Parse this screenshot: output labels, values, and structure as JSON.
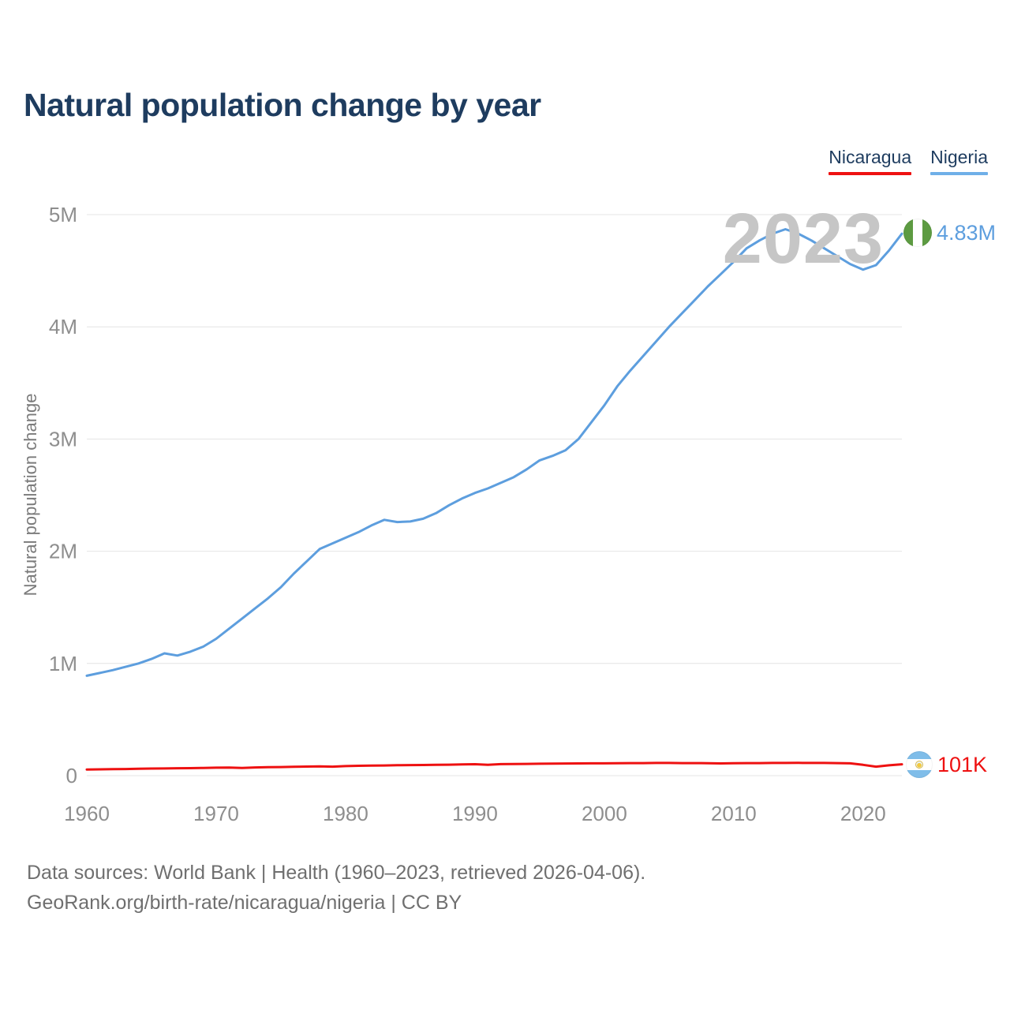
{
  "header": {
    "title": "Natural population change by year"
  },
  "legend": [
    {
      "label": "Nicaragua",
      "color": "#ee1111"
    },
    {
      "label": "Nigeria",
      "color": "#6fafe8"
    }
  ],
  "watermark": "2023",
  "chart_data": {
    "type": "line",
    "title": "Natural population change by year",
    "xlabel": "",
    "ylabel": "Natural population change",
    "xlim": [
      1960,
      2023
    ],
    "ylim": [
      0,
      5000000
    ],
    "grid": "horizontal",
    "legend_position": "top-right",
    "x_ticks": [
      "1960",
      "1970",
      "1980",
      "1990",
      "2000",
      "2010",
      "2020"
    ],
    "y_ticks": [
      "0",
      "1M",
      "2M",
      "3M",
      "4M",
      "5M"
    ],
    "x": [
      1960,
      1961,
      1962,
      1963,
      1964,
      1965,
      1966,
      1967,
      1968,
      1969,
      1970,
      1971,
      1972,
      1973,
      1974,
      1975,
      1976,
      1977,
      1978,
      1979,
      1980,
      1981,
      1982,
      1983,
      1984,
      1985,
      1986,
      1987,
      1988,
      1989,
      1990,
      1991,
      1992,
      1993,
      1994,
      1995,
      1996,
      1997,
      1998,
      1999,
      2000,
      2001,
      2002,
      2003,
      2004,
      2005,
      2006,
      2007,
      2008,
      2009,
      2010,
      2011,
      2012,
      2013,
      2014,
      2015,
      2016,
      2017,
      2018,
      2019,
      2020,
      2021,
      2022,
      2023
    ],
    "series": [
      {
        "name": "Nigeria",
        "color": "#5d9ede",
        "end_label": "4.83M",
        "flag": "nigeria-flag",
        "values": [
          890000,
          915000,
          940000,
          970000,
          1000000,
          1040000,
          1090000,
          1070000,
          1105000,
          1150000,
          1220000,
          1310000,
          1400000,
          1490000,
          1580000,
          1680000,
          1800000,
          1910000,
          2020000,
          2070000,
          2120000,
          2170000,
          2230000,
          2280000,
          2260000,
          2265000,
          2290000,
          2340000,
          2410000,
          2470000,
          2520000,
          2560000,
          2610000,
          2660000,
          2730000,
          2810000,
          2850000,
          2900000,
          3000000,
          3150000,
          3300000,
          3470000,
          3610000,
          3740000,
          3870000,
          4000000,
          4120000,
          4240000,
          4360000,
          4470000,
          4580000,
          4700000,
          4770000,
          4830000,
          4870000,
          4830000,
          4770000,
          4700000,
          4630000,
          4560000,
          4510000,
          4550000,
          4680000,
          4830000
        ]
      },
      {
        "name": "Nicaragua",
        "color": "#ee1111",
        "end_label": "101K",
        "flag": "nicaragua-flag",
        "values": [
          55000,
          56000,
          58000,
          59000,
          61000,
          63000,
          64000,
          66000,
          67000,
          69000,
          71000,
          72000,
          69000,
          73000,
          75000,
          77000,
          79000,
          81000,
          82000,
          80000,
          85000,
          88000,
          90000,
          91000,
          93000,
          94000,
          95000,
          96000,
          98000,
          100000,
          102000,
          96000,
          103000,
          104000,
          105000,
          106000,
          107000,
          108000,
          109000,
          110000,
          110000,
          111000,
          112000,
          112000,
          113000,
          113000,
          112000,
          112000,
          111000,
          109000,
          111000,
          112000,
          112000,
          113000,
          113000,
          114000,
          113000,
          113000,
          112000,
          110000,
          96000,
          80000,
          92000,
          101000
        ]
      }
    ]
  },
  "footer": {
    "line1": "Data sources: World Bank | Health (1960–2023, retrieved 2026-04-06).",
    "line2": "GeoRank.org/birth-rate/nicaragua/nigeria | CC BY"
  }
}
